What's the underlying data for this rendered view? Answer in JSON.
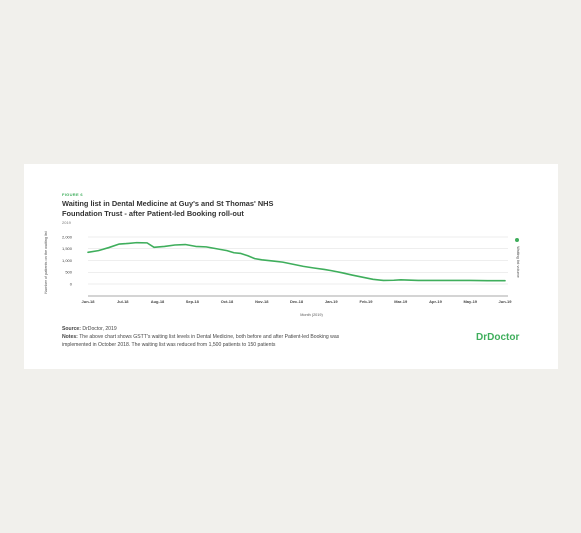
{
  "figure": {
    "label": "FIGURE 6",
    "title": "Waiting list in Dental Medicine at Guy's and St Thomas' NHS Foundation Trust - after Patient-led Booking roll-out",
    "subtitle": "2019"
  },
  "source": {
    "label": "Source:",
    "text": "DrDoctor, 2019"
  },
  "notes": {
    "label": "Notes:",
    "text": "The above chart shows GSTT's waiting list levels in Dental Medicine, both before and after Patient-led Booking was implemented in October 2018. The waiting list was reduced from 1,500 patients to 150 patients"
  },
  "brand": {
    "name": "DrDoctor"
  },
  "colors": {
    "accent": "#3fae5c",
    "grid": "#dddddd",
    "axis": "#555555"
  },
  "chart_data": {
    "type": "line",
    "xlabel": "Month (2019)",
    "ylabel": "Number of patients on the waiting list",
    "ylim": [
      0,
      2000
    ],
    "yticks": [
      0,
      500,
      1000,
      1500,
      2000
    ],
    "ytick_labels": [
      "0",
      "500",
      "1,000",
      "1,500",
      "2,000"
    ],
    "xlim": [
      0,
      12
    ],
    "xticks": [
      0,
      1,
      2,
      3,
      4,
      5,
      6,
      7,
      8,
      9,
      10,
      11,
      12
    ],
    "xtick_labels": [
      "Jun-18",
      "Jul-18",
      "Aug-18",
      "Sep-18",
      "Oct-18",
      "Nov-18",
      "Dec-18",
      "Jan-19",
      "Feb-19",
      "Mar-19",
      "Apr-19",
      "May-19",
      "Jun-19"
    ],
    "legend": {
      "position": "right",
      "label": "Waiting list volume"
    },
    "grid": true,
    "series": [
      {
        "name": "Waiting list volume",
        "x": [
          0,
          0.3,
          0.6,
          0.9,
          1.1,
          1.4,
          1.7,
          1.9,
          2.2,
          2.5,
          2.8,
          3.1,
          3.4,
          3.7,
          4.0,
          4.2,
          4.4,
          4.6,
          4.8,
          5.0,
          5.3,
          5.6,
          5.9,
          6.2,
          6.5,
          6.8,
          7.0,
          7.3,
          7.6,
          7.9,
          8.2,
          8.5,
          8.8,
          9.0,
          9.5,
          10.0,
          10.5,
          11.0,
          11.5,
          12.0
        ],
        "y": [
          1350,
          1420,
          1550,
          1700,
          1720,
          1760,
          1750,
          1560,
          1600,
          1660,
          1680,
          1600,
          1580,
          1500,
          1420,
          1330,
          1300,
          1200,
          1080,
          1030,
          980,
          930,
          840,
          750,
          680,
          620,
          570,
          480,
          380,
          290,
          200,
          150,
          160,
          180,
          150,
          150,
          150,
          150,
          140,
          140
        ]
      }
    ]
  }
}
